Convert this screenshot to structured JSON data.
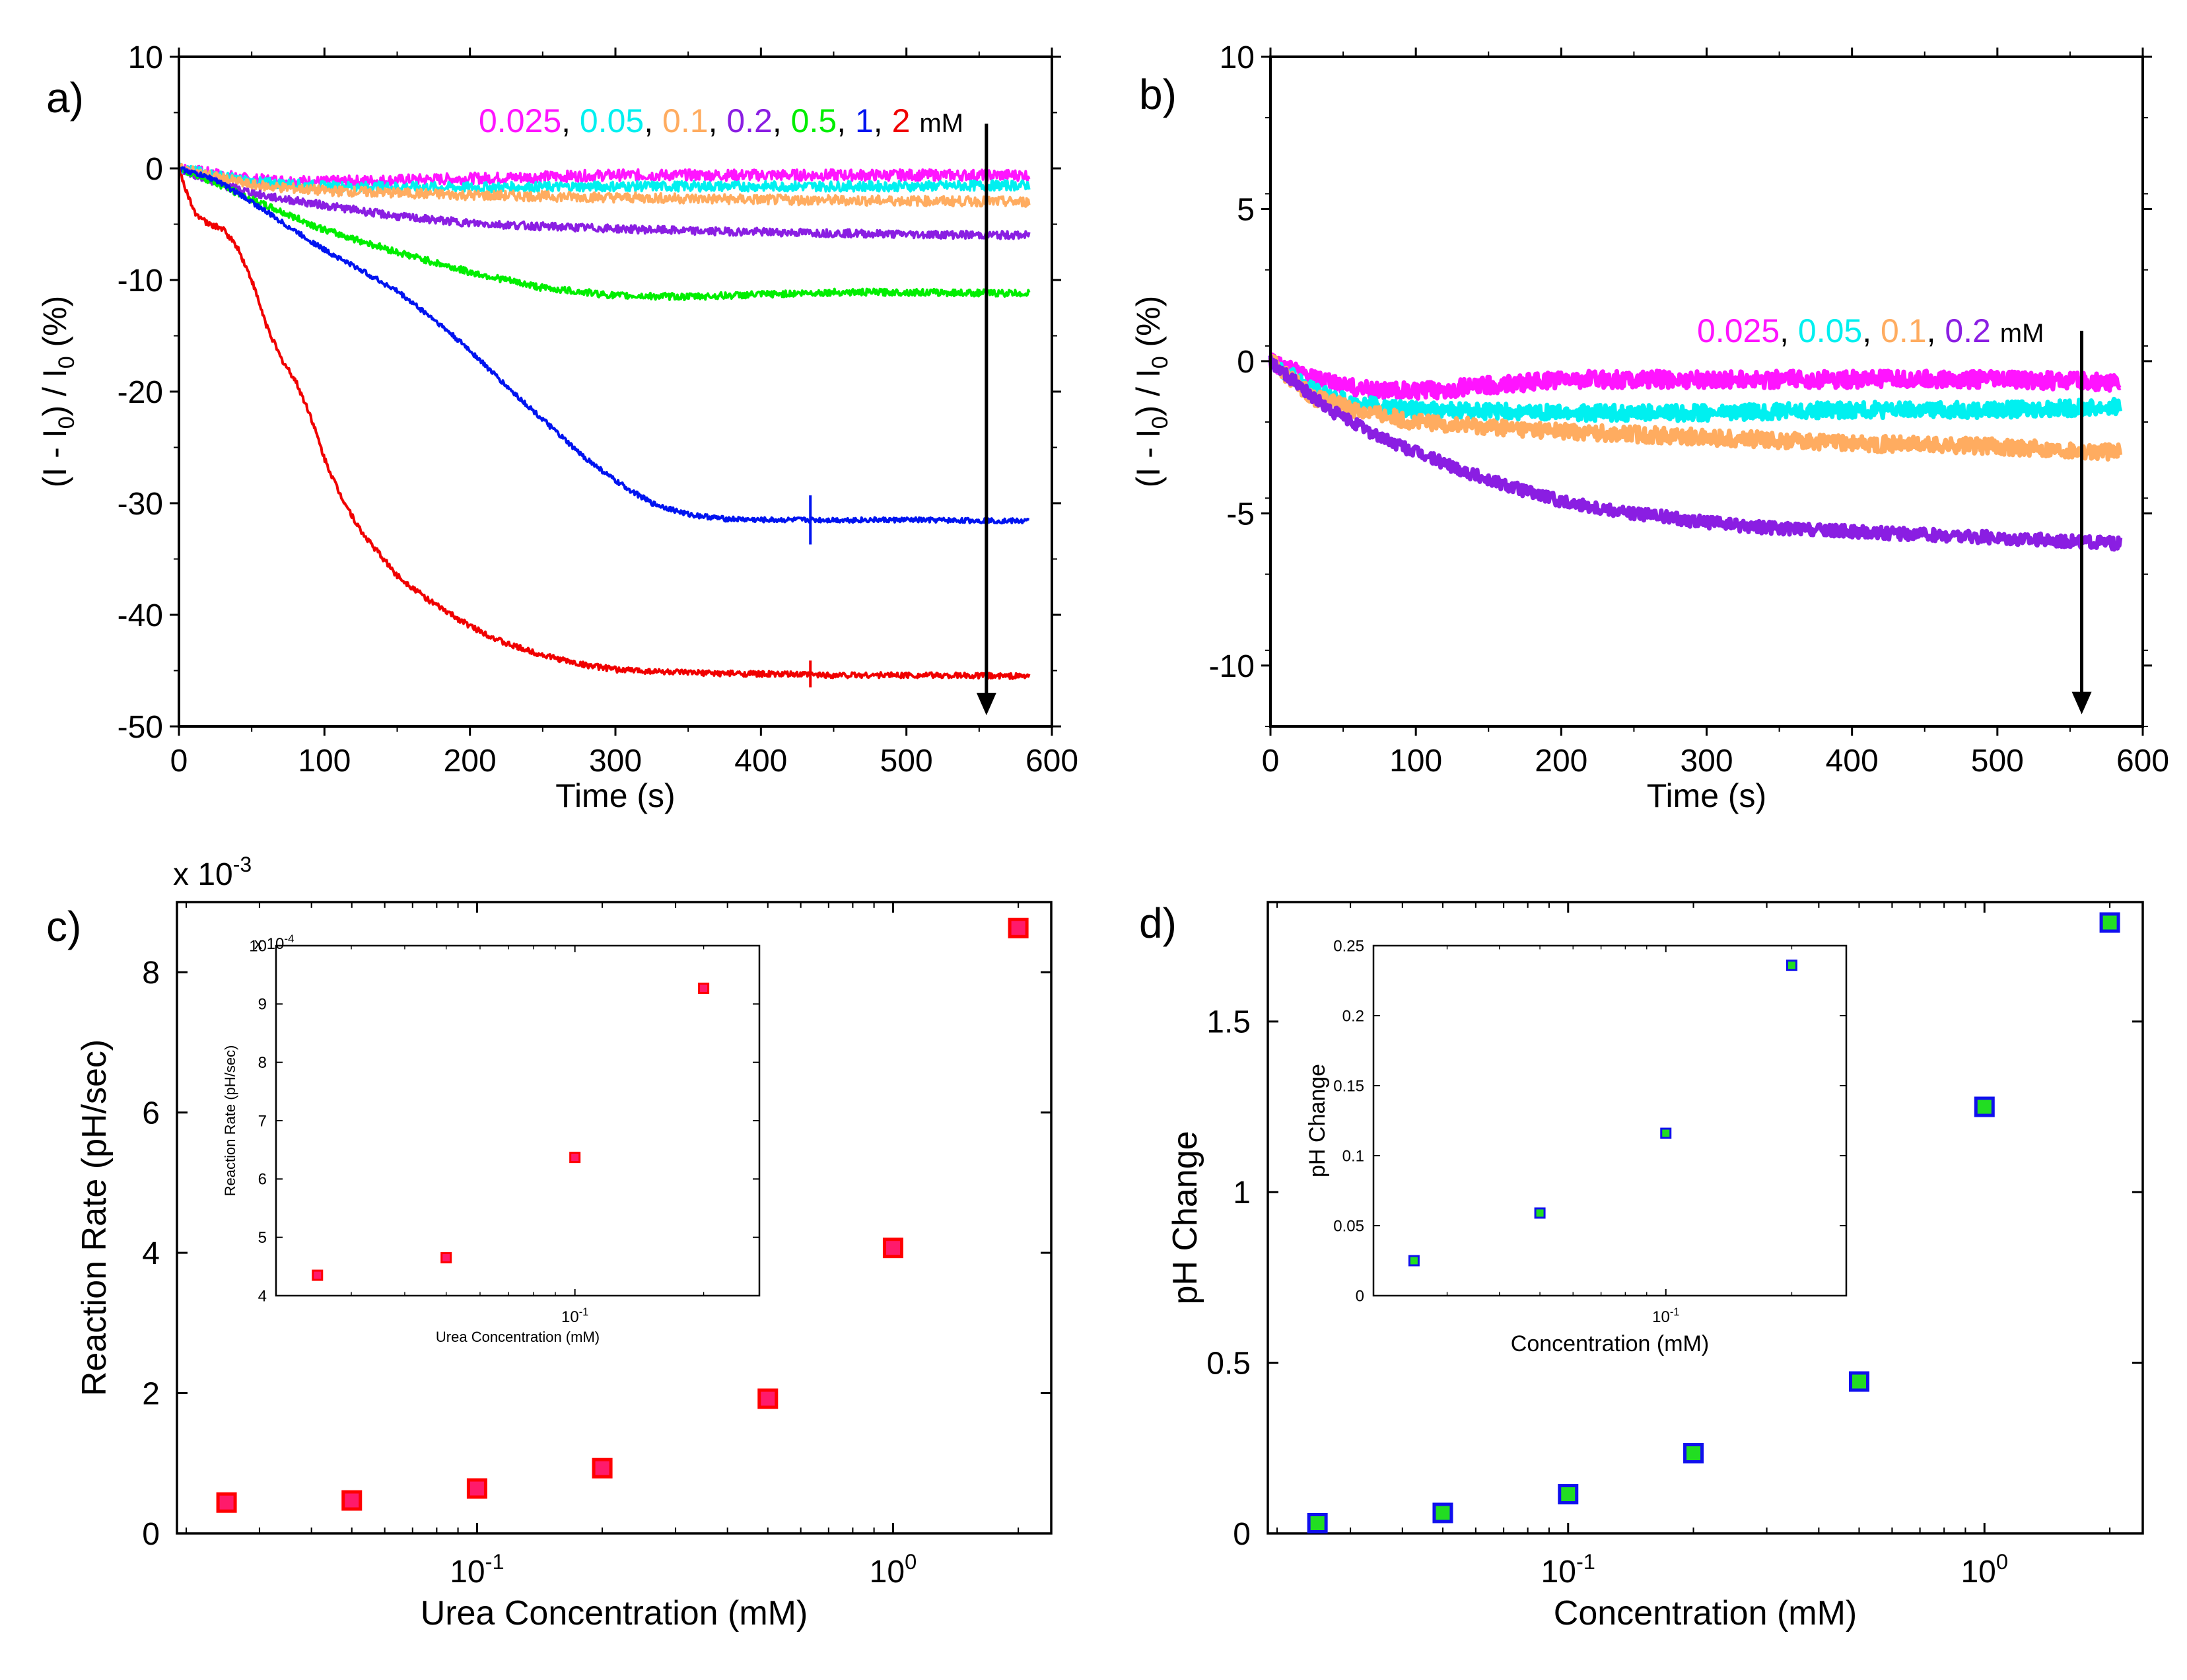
{
  "colors": {
    "c0025": "#ff14ff",
    "c005": "#00f0f0",
    "c01": "#ffac60",
    "c02": "#8a1ee2",
    "c05": "#00ee00",
    "c1": "#0014f0",
    "c2": "#f00000",
    "marker_c_fill": "#ff1a6b",
    "marker_c_edge": "#ff0000",
    "marker_d_fill": "#22dd22",
    "marker_d_edge": "#1010ee"
  },
  "panels": {
    "a": {
      "label": "a)",
      "concentrations": [
        "0.025",
        "0.05",
        "0.1",
        "0.2",
        "0.5",
        "1",
        "2"
      ],
      "unit": "mM"
    },
    "b": {
      "label": "b)",
      "concentrations": [
        "0.025",
        "0.05",
        "0.1",
        "0.2"
      ],
      "unit": "mM"
    },
    "c": {
      "label": "c)",
      "exponent_main": "x 10-3",
      "exponent_inset": "x 10-4"
    },
    "d": {
      "label": "d)"
    }
  },
  "chart_data": [
    {
      "id": "a",
      "type": "line",
      "title": "",
      "xlabel": "Time (s)",
      "ylabel": "(I - I0) / I0 (%)",
      "xlim": [
        0,
        600
      ],
      "ylim": [
        -50,
        10
      ],
      "xticks": [
        0,
        100,
        200,
        300,
        400,
        500,
        600
      ],
      "yticks": [
        10,
        0,
        -10,
        -20,
        -30,
        -40,
        -50
      ],
      "arrow": {
        "x": 555,
        "from": 4,
        "to": -49
      },
      "series": [
        {
          "name": "0.025 mM",
          "color": "#ff14ff",
          "noise": 0.5,
          "points": [
            [
              0,
              0
            ],
            [
              50,
              -1.0
            ],
            [
              100,
              -1.2
            ],
            [
              200,
              -0.9
            ],
            [
              300,
              -0.6
            ],
            [
              400,
              -0.6
            ],
            [
              500,
              -0.6
            ],
            [
              585,
              -0.6
            ]
          ]
        },
        {
          "name": "0.05 mM",
          "color": "#00f0f0",
          "noise": 0.45,
          "points": [
            [
              0,
              0
            ],
            [
              50,
              -1.2
            ],
            [
              100,
              -1.6
            ],
            [
              200,
              -1.7
            ],
            [
              300,
              -1.6
            ],
            [
              400,
              -1.6
            ],
            [
              500,
              -1.6
            ],
            [
              585,
              -1.5
            ]
          ]
        },
        {
          "name": "0.1 mM",
          "color": "#ffac60",
          "noise": 0.45,
          "points": [
            [
              0,
              0
            ],
            [
              50,
              -1.5
            ],
            [
              100,
              -2.0
            ],
            [
              200,
              -2.4
            ],
            [
              300,
              -2.6
            ],
            [
              400,
              -2.8
            ],
            [
              500,
              -2.9
            ],
            [
              585,
              -3.0
            ]
          ]
        },
        {
          "name": "0.2 mM",
          "color": "#8a1ee2",
          "noise": 0.35,
          "points": [
            [
              0,
              0
            ],
            [
              30,
              -1.5
            ],
            [
              60,
              -2.5
            ],
            [
              100,
              -3.3
            ],
            [
              150,
              -4.3
            ],
            [
              200,
              -4.9
            ],
            [
              250,
              -5.2
            ],
            [
              300,
              -5.4
            ],
            [
              350,
              -5.6
            ],
            [
              400,
              -5.7
            ],
            [
              450,
              -5.8
            ],
            [
              500,
              -5.9
            ],
            [
              585,
              -6.0
            ]
          ]
        },
        {
          "name": "0.5 mM",
          "color": "#00ee00",
          "noise": 0.3,
          "points": [
            [
              0,
              0
            ],
            [
              20,
              -1.0
            ],
            [
              50,
              -2.8
            ],
            [
              100,
              -5.5
            ],
            [
              150,
              -7.5
            ],
            [
              200,
              -9.3
            ],
            [
              250,
              -10.7
            ],
            [
              300,
              -11.4
            ],
            [
              350,
              -11.5
            ],
            [
              400,
              -11.3
            ],
            [
              450,
              -11.1
            ],
            [
              500,
              -11.1
            ],
            [
              585,
              -11.2
            ]
          ]
        },
        {
          "name": "1 mM",
          "color": "#0014f0",
          "noise": 0.22,
          "points": [
            [
              0,
              0
            ],
            [
              25,
              -1.0
            ],
            [
              50,
              -3.0
            ],
            [
              75,
              -5.2
            ],
            [
              100,
              -7.3
            ],
            [
              125,
              -9.1
            ],
            [
              150,
              -11.0
            ],
            [
              175,
              -13.5
            ],
            [
              200,
              -16.3
            ],
            [
              225,
              -19.5
            ],
            [
              250,
              -22.5
            ],
            [
              275,
              -25.5
            ],
            [
              300,
              -28.0
            ],
            [
              325,
              -30.0
            ],
            [
              350,
              -31.0
            ],
            [
              375,
              -31.4
            ],
            [
              400,
              -31.5
            ],
            [
              450,
              -31.5
            ],
            [
              500,
              -31.5
            ],
            [
              585,
              -31.6
            ]
          ]
        },
        {
          "name": "2 mM",
          "color": "#f00000",
          "noise": 0.25,
          "points": [
            [
              0,
              0
            ],
            [
              5,
              -2.0
            ],
            [
              10,
              -3.8
            ],
            [
              20,
              -5.0
            ],
            [
              30,
              -5.4
            ],
            [
              40,
              -7.0
            ],
            [
              50,
              -10.0
            ],
            [
              60,
              -14.0
            ],
            [
              70,
              -17.0
            ],
            [
              80,
              -19.0
            ],
            [
              90,
              -22.0
            ],
            [
              100,
              -26.0
            ],
            [
              110,
              -29.0
            ],
            [
              125,
              -32.5
            ],
            [
              150,
              -36.5
            ],
            [
              175,
              -39.0
            ],
            [
              200,
              -41.0
            ],
            [
              225,
              -42.6
            ],
            [
              250,
              -43.6
            ],
            [
              275,
              -44.4
            ],
            [
              300,
              -44.9
            ],
            [
              350,
              -45.2
            ],
            [
              400,
              -45.3
            ],
            [
              450,
              -45.4
            ],
            [
              500,
              -45.4
            ],
            [
              585,
              -45.5
            ]
          ]
        }
      ]
    },
    {
      "id": "b",
      "type": "line",
      "title": "",
      "xlabel": "Time (s)",
      "ylabel": "(I - I0) / I0 (%)",
      "xlim": [
        0,
        600
      ],
      "ylim": [
        -12,
        10
      ],
      "xticks": [
        0,
        100,
        200,
        300,
        400,
        500,
        600
      ],
      "yticks": [
        10,
        5,
        0,
        -5,
        -10
      ],
      "arrow": {
        "x": 558,
        "from": 1.0,
        "to": -11.6
      },
      "series": [
        {
          "name": "0.025 mM",
          "color": "#ff14ff",
          "noise": 0.28,
          "points": [
            [
              0,
              0
            ],
            [
              30,
              -0.6
            ],
            [
              60,
              -0.9
            ],
            [
              100,
              -1.0
            ],
            [
              150,
              -0.8
            ],
            [
              200,
              -0.6
            ],
            [
              300,
              -0.6
            ],
            [
              400,
              -0.6
            ],
            [
              500,
              -0.6
            ],
            [
              585,
              -0.7
            ]
          ]
        },
        {
          "name": "0.05 mM",
          "color": "#00f0f0",
          "noise": 0.26,
          "points": [
            [
              0,
              0
            ],
            [
              30,
              -1.0
            ],
            [
              60,
              -1.4
            ],
            [
              100,
              -1.6
            ],
            [
              200,
              -1.7
            ],
            [
              300,
              -1.7
            ],
            [
              400,
              -1.6
            ],
            [
              500,
              -1.6
            ],
            [
              585,
              -1.5
            ]
          ]
        },
        {
          "name": "0.1 mM",
          "color": "#ffac60",
          "noise": 0.26,
          "points": [
            [
              0,
              0
            ],
            [
              30,
              -1.2
            ],
            [
              60,
              -1.6
            ],
            [
              100,
              -2.0
            ],
            [
              200,
              -2.3
            ],
            [
              300,
              -2.5
            ],
            [
              400,
              -2.7
            ],
            [
              500,
              -2.8
            ],
            [
              585,
              -3.0
            ]
          ]
        },
        {
          "name": "0.2 mM",
          "color": "#8a1ee2",
          "noise": 0.2,
          "points": [
            [
              0,
              0
            ],
            [
              20,
              -0.8
            ],
            [
              40,
              -1.6
            ],
            [
              60,
              -2.1
            ],
            [
              80,
              -2.6
            ],
            [
              100,
              -3.0
            ],
            [
              150,
              -3.9
            ],
            [
              200,
              -4.6
            ],
            [
              250,
              -5.0
            ],
            [
              300,
              -5.3
            ],
            [
              350,
              -5.5
            ],
            [
              400,
              -5.6
            ],
            [
              450,
              -5.7
            ],
            [
              500,
              -5.8
            ],
            [
              585,
              -6.0
            ]
          ]
        }
      ]
    },
    {
      "id": "c",
      "type": "scatter",
      "title": "",
      "xlabel": "Urea Concentration (mM)",
      "ylabel": "Reaction Rate (pH/sec)",
      "xscale": "log",
      "xlim": [
        0.019,
        2.4
      ],
      "ylim": [
        0,
        9
      ],
      "yscale_multiplier": "x 10^-3",
      "xticks": [
        {
          "v": 0.1,
          "base": "10",
          "exp": "-1"
        },
        {
          "v": 1,
          "base": "10",
          "exp": "0"
        }
      ],
      "yticks": [
        0,
        2,
        4,
        6,
        8
      ],
      "x": [
        0.025,
        0.05,
        0.1,
        0.2,
        0.5,
        1,
        2
      ],
      "y": [
        0.44,
        0.47,
        0.64,
        0.93,
        1.92,
        4.07,
        8.63
      ],
      "inset": {
        "xlabel": "Urea Concentration (mM)",
        "ylabel": "Reaction Rate (pH/sec)",
        "xscale": "log",
        "xlim": [
          0.02,
          0.27
        ],
        "ylim": [
          4,
          10
        ],
        "yscale_multiplier": "x 10^-4",
        "xticks": [
          {
            "v": 0.1,
            "base": "10",
            "exp": "-1"
          }
        ],
        "yticks": [
          4,
          5,
          6,
          7,
          8,
          9,
          10
        ],
        "x": [
          0.025,
          0.05,
          0.1,
          0.2
        ],
        "y": [
          4.35,
          4.65,
          6.37,
          9.27
        ]
      }
    },
    {
      "id": "d",
      "type": "scatter",
      "title": "",
      "xlabel": "Concentration (mM)",
      "ylabel": "pH Change",
      "xscale": "log",
      "xlim": [
        0.019,
        2.4
      ],
      "ylim": [
        0,
        1.85
      ],
      "xticks": [
        {
          "v": 0.1,
          "base": "10",
          "exp": "-1"
        },
        {
          "v": 1,
          "base": "10",
          "exp": "0"
        }
      ],
      "yticks": [
        0,
        0.5,
        1,
        1.5
      ],
      "x": [
        0.025,
        0.05,
        0.1,
        0.2,
        0.5,
        1,
        2
      ],
      "y": [
        0.03,
        0.06,
        0.115,
        0.235,
        0.445,
        1.25,
        1.79
      ],
      "inset": {
        "xlabel": "Concentration (mM)",
        "ylabel": "pH Change",
        "xscale": "log",
        "xlim": [
          0.02,
          0.27
        ],
        "ylim": [
          0,
          0.25
        ],
        "xticks": [
          {
            "v": 0.1,
            "base": "10",
            "exp": "-1"
          }
        ],
        "yticks": [
          0,
          0.05,
          0.1,
          0.15,
          0.2,
          0.25
        ],
        "x": [
          0.025,
          0.05,
          0.1,
          0.2
        ],
        "y": [
          0.025,
          0.059,
          0.116,
          0.236
        ]
      }
    }
  ]
}
